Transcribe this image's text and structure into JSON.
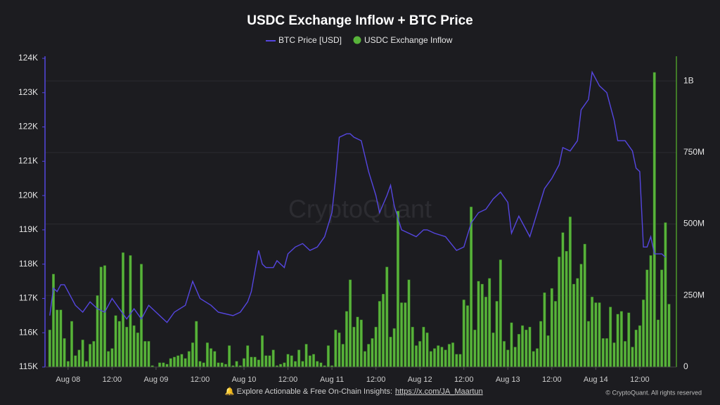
{
  "chart_data": {
    "type": "combo",
    "title": "USDC Exchange Inflow + BTC Price",
    "xlim": [
      -6.3,
      166
    ],
    "xticks": [
      {
        "value": 0,
        "label": "Aug 08"
      },
      {
        "value": 12,
        "label": "12:00"
      },
      {
        "value": 24,
        "label": "Aug 09"
      },
      {
        "value": 36,
        "label": "12:00"
      },
      {
        "value": 48,
        "label": "Aug 10"
      },
      {
        "value": 60,
        "label": "12:00"
      },
      {
        "value": 72,
        "label": "Aug 11"
      },
      {
        "value": 84,
        "label": "12:00"
      },
      {
        "value": 96,
        "label": "Aug 12"
      },
      {
        "value": 108,
        "label": "12:00"
      },
      {
        "value": 120,
        "label": "Aug 13"
      },
      {
        "value": 132,
        "label": "12:00"
      },
      {
        "value": 144,
        "label": "Aug 14"
      },
      {
        "value": 156,
        "label": "12:00"
      }
    ],
    "ylim": [
      115000,
      124000
    ],
    "yticks": [
      {
        "value": 115000,
        "label": "115K"
      },
      {
        "value": 116000,
        "label": "116K"
      },
      {
        "value": 117000,
        "label": "117K"
      },
      {
        "value": 118000,
        "label": "118K"
      },
      {
        "value": 119000,
        "label": "119K"
      },
      {
        "value": 120000,
        "label": "120K"
      },
      {
        "value": 121000,
        "label": "121K"
      },
      {
        "value": 122000,
        "label": "122K"
      },
      {
        "value": 123000,
        "label": "123K"
      },
      {
        "value": 124000,
        "label": "124K"
      }
    ],
    "y2lim": [
      0,
      1079000000.0
    ],
    "y2ticks": [
      0,
      {
        "value": 250000000.0,
        "label": "250M"
      },
      {
        "value": 500000000.0,
        "label": "500M"
      },
      {
        "value": 750000000.0,
        "label": "750M"
      },
      {
        "value": 1000000000.0,
        "label": "1B"
      }
    ],
    "grid": true,
    "series": [
      {
        "name": "BTC Price [USD]",
        "type": "line",
        "color": "#5546e0",
        "x": [
          -5,
          -4,
          -3,
          -2,
          -1,
          1,
          2,
          4,
          6,
          8,
          10,
          12,
          14,
          16,
          18,
          20,
          22,
          24,
          26,
          27,
          29,
          32,
          34,
          36,
          39,
          41,
          45,
          47,
          49,
          50,
          52,
          53,
          54,
          56,
          57,
          59,
          60,
          62,
          64,
          66,
          68,
          70,
          72,
          73,
          74,
          76,
          77,
          78,
          80,
          82,
          84,
          85,
          87,
          88,
          89,
          91,
          93,
          95,
          97,
          98,
          100,
          103,
          106,
          108,
          110,
          112,
          114,
          116,
          118,
          120,
          121,
          123,
          126,
          128,
          130,
          132,
          134,
          135,
          137,
          139,
          140,
          142,
          143,
          145,
          147,
          149,
          150,
          152,
          154,
          155,
          156,
          157,
          158,
          159,
          160,
          162,
          163
        ],
        "values": [
          116500,
          117300,
          117200,
          117400,
          117400,
          117000,
          116800,
          116600,
          116900,
          116700,
          116600,
          117000,
          116700,
          116400,
          116700,
          116400,
          116800,
          116600,
          116400,
          116300,
          116600,
          116800,
          117500,
          117000,
          116800,
          116600,
          116500,
          116600,
          116900,
          117200,
          118400,
          118000,
          117900,
          117900,
          118100,
          117900,
          118300,
          118500,
          118600,
          118400,
          118500,
          118800,
          119500,
          120500,
          121700,
          121800,
          121800,
          121700,
          121600,
          120700,
          120000,
          119500,
          120000,
          120300,
          119700,
          119000,
          118900,
          118800,
          119000,
          119000,
          118900,
          118800,
          118400,
          118500,
          119200,
          119500,
          119600,
          119900,
          120100,
          119800,
          118900,
          119400,
          118800,
          119500,
          120200,
          120500,
          120900,
          121400,
          121300,
          121600,
          122500,
          122800,
          123600,
          123200,
          123000,
          122200,
          121600,
          121600,
          121300,
          120800,
          120700,
          118500,
          118500,
          118800,
          118300,
          118300,
          118200
        ]
      },
      {
        "name": "USDC Exchange Inflow",
        "type": "bar",
        "axis": "y2",
        "color": "#58b33a",
        "x": [
          -5,
          -4,
          -3,
          -2,
          -1,
          0,
          1,
          2,
          3,
          4,
          5,
          6,
          7,
          8,
          9,
          10,
          11,
          12,
          13,
          14,
          15,
          16,
          17,
          18,
          19,
          20,
          21,
          22,
          23,
          24,
          25,
          26,
          27,
          28,
          29,
          30,
          31,
          32,
          33,
          34,
          35,
          36,
          37,
          38,
          39,
          40,
          41,
          42,
          43,
          44,
          45,
          46,
          47,
          48,
          49,
          50,
          51,
          52,
          53,
          54,
          55,
          56,
          57,
          58,
          59,
          60,
          61,
          62,
          63,
          64,
          65,
          66,
          67,
          68,
          69,
          70,
          71,
          72,
          73,
          74,
          75,
          76,
          77,
          78,
          79,
          80,
          81,
          82,
          83,
          84,
          85,
          86,
          87,
          88,
          89,
          90,
          91,
          92,
          93,
          94,
          95,
          96,
          97,
          98,
          99,
          100,
          101,
          102,
          103,
          104,
          105,
          106,
          107,
          108,
          109,
          110,
          111,
          112,
          113,
          114,
          115,
          116,
          117,
          118,
          119,
          120,
          121,
          122,
          123,
          124,
          125,
          126,
          127,
          128,
          129,
          130,
          131,
          132,
          133,
          134,
          135,
          136,
          137,
          138,
          139,
          140,
          141,
          142,
          143,
          144,
          145,
          146,
          147,
          148,
          149,
          150,
          151,
          152,
          153,
          154,
          155,
          156,
          157,
          158,
          159,
          160,
          161,
          162,
          163,
          164
        ],
        "values": [
          130000000.0,
          325000000.0,
          200000000.0,
          200000000.0,
          100000000.0,
          20000000.0,
          160000000.0,
          40000000.0,
          60000000.0,
          95000000.0,
          20000000.0,
          80000000.0,
          90000000.0,
          250000000.0,
          350000000.0,
          355000000.0,
          55000000.0,
          65000000.0,
          180000000.0,
          160000000.0,
          400000000.0,
          140000000.0,
          390000000.0,
          145000000.0,
          120000000.0,
          360000000.0,
          90000000.0,
          90000000.0,
          5000000.0,
          0,
          15000000.0,
          15000000.0,
          10000000.0,
          30000000.0,
          35000000.0,
          40000000.0,
          45000000.0,
          30000000.0,
          55000000.0,
          85000000.0,
          160000000.0,
          20000000.0,
          15000000.0,
          85000000.0,
          65000000.0,
          55000000.0,
          15000000.0,
          15000000.0,
          10000000.0,
          75000000.0,
          5000000.0,
          20000000.0,
          5000000.0,
          30000000.0,
          75000000.0,
          35000000.0,
          35000000.0,
          25000000.0,
          110000000.0,
          40000000.0,
          40000000.0,
          60000000.0,
          5000000.0,
          10000000.0,
          15000000.0,
          45000000.0,
          40000000.0,
          20000000.0,
          60000000.0,
          20000000.0,
          80000000.0,
          40000000.0,
          45000000.0,
          20000000.0,
          15000000.0,
          5000000.0,
          75000000.0,
          5000000.0,
          130000000.0,
          120000000.0,
          80000000.0,
          195000000.0,
          305000000.0,
          140000000.0,
          175000000.0,
          165000000.0,
          55000000.0,
          80000000.0,
          100000000.0,
          140000000.0,
          230000000.0,
          255000000.0,
          350000000.0,
          105000000.0,
          135000000.0,
          545000000.0,
          225000000.0,
          225000000.0,
          305000000.0,
          140000000.0,
          75000000.0,
          90000000.0,
          140000000.0,
          120000000.0,
          55000000.0,
          65000000.0,
          75000000.0,
          70000000.0,
          60000000.0,
          80000000.0,
          85000000.0,
          45000000.0,
          45000000.0,
          235000000.0,
          215000000.0,
          560000000.0,
          130000000.0,
          300000000.0,
          290000000.0,
          245000000.0,
          310000000.0,
          120000000.0,
          230000000.0,
          375000000.0,
          90000000.0,
          60000000.0,
          155000000.0,
          70000000.0,
          115000000.0,
          145000000.0,
          130000000.0,
          140000000.0,
          55000000.0,
          65000000.0,
          160000000.0,
          260000000.0,
          110000000.0,
          275000000.0,
          230000000.0,
          385000000.0,
          470000000.0,
          405000000.0,
          525000000.0,
          290000000.0,
          310000000.0,
          360000000.0,
          430000000.0,
          160000000.0,
          245000000.0,
          225000000.0,
          225000000.0,
          100000000.0,
          100000000.0,
          210000000.0,
          85000000.0,
          185000000.0,
          195000000.0,
          90000000.0,
          190000000.0,
          70000000.0,
          130000000.0,
          145000000.0,
          235000000.0,
          340000000.0,
          390000000.0,
          1030000000.0,
          165000000.0,
          340000000.0,
          505000000.0,
          220000000.0
        ]
      }
    ]
  },
  "watermark": "CryptoQuant",
  "footer": {
    "note": "🔔 Explore Actionable & Free On-Chain Insights:",
    "link": "https://x.com/JA_Maartun",
    "copyright": "© CryptoQuant. All rights reserved"
  }
}
